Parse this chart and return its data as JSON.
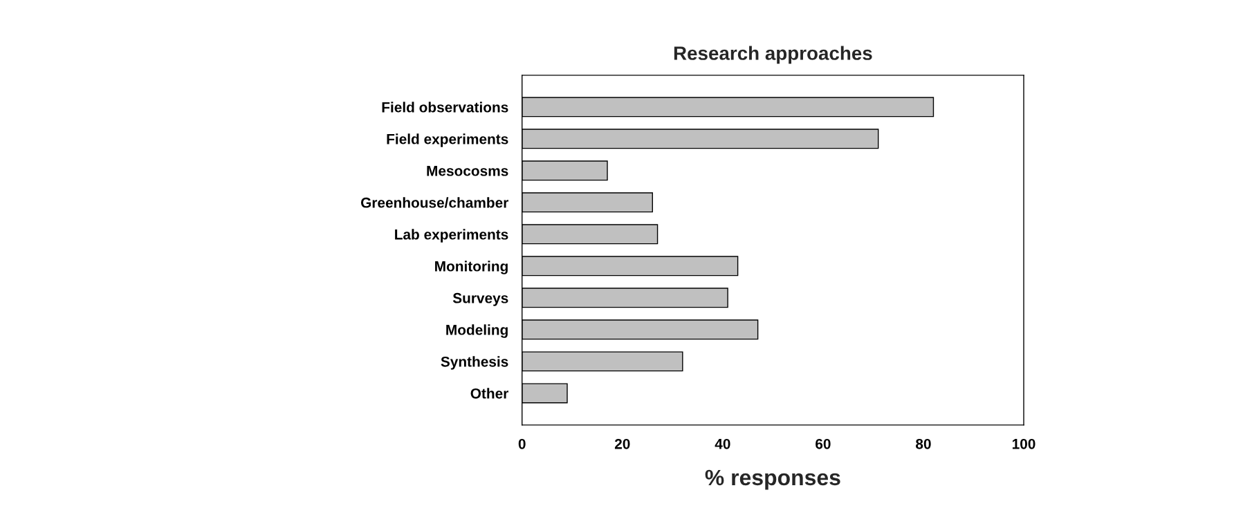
{
  "chart_data": {
    "type": "bar",
    "orientation": "horizontal",
    "title": "Research approaches",
    "xlabel": "% responses",
    "categories": [
      "Field observations",
      "Field experiments",
      "Mesocosms",
      "Greenhouse/chamber",
      "Lab experiments",
      "Monitoring",
      "Surveys",
      "Modeling",
      "Synthesis",
      "Other"
    ],
    "values": [
      82,
      71,
      17,
      26,
      27,
      43,
      41,
      47,
      32,
      9
    ],
    "color": "#c0c0c0",
    "xlim": [
      0,
      100
    ],
    "xticks": [
      0,
      20,
      40,
      60,
      80,
      100
    ],
    "grid": false,
    "legend": false
  }
}
